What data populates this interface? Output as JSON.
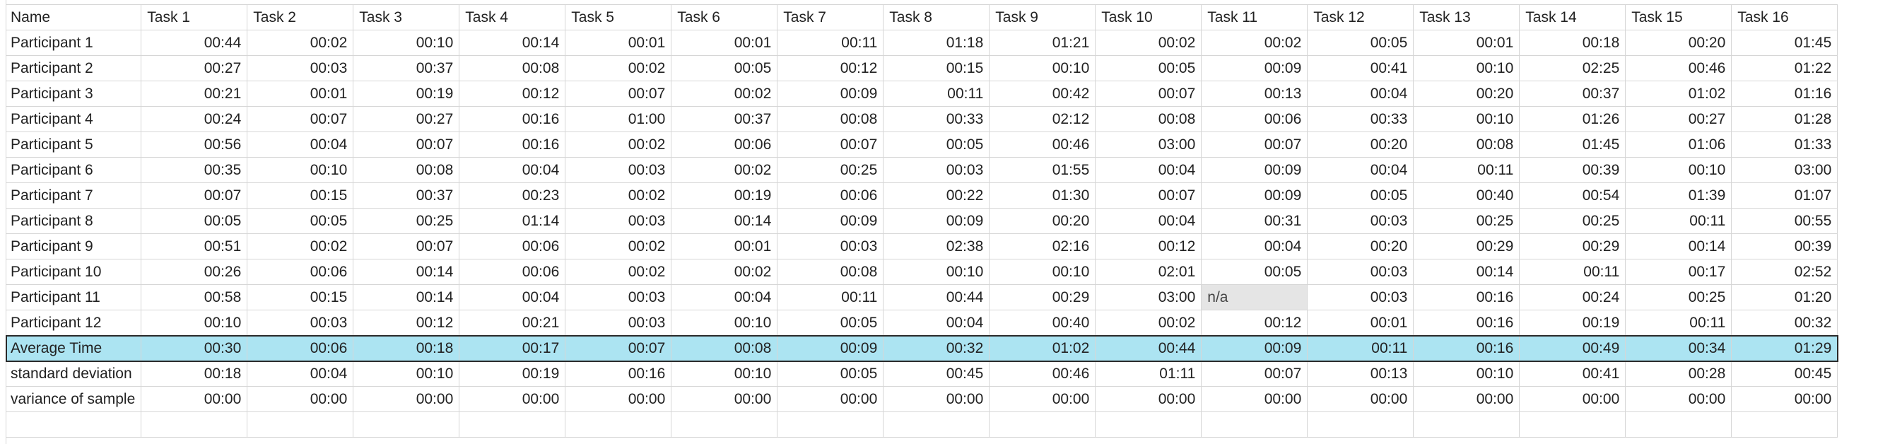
{
  "header": [
    "Name",
    "Task 1",
    "Task 2",
    "Task 3",
    "Task 4",
    "Task 5",
    "Task 6",
    "Task 7",
    "Task 8",
    "Task 9",
    "Task 10",
    "Task 11",
    "Task 12",
    "Task 13",
    "Task 14",
    "Task 15",
    "Task 16"
  ],
  "rows": [
    {
      "name": "Participant 1",
      "values": [
        "00:44",
        "00:02",
        "00:10",
        "00:14",
        "00:01",
        "00:01",
        "00:11",
        "01:18",
        "01:21",
        "00:02",
        "00:02",
        "00:05",
        "00:01",
        "00:18",
        "00:20",
        "01:45"
      ]
    },
    {
      "name": "Participant 2",
      "values": [
        "00:27",
        "00:03",
        "00:37",
        "00:08",
        "00:02",
        "00:05",
        "00:12",
        "00:15",
        "00:10",
        "00:05",
        "00:09",
        "00:41",
        "00:10",
        "02:25",
        "00:46",
        "01:22"
      ]
    },
    {
      "name": "Participant 3",
      "values": [
        "00:21",
        "00:01",
        "00:19",
        "00:12",
        "00:07",
        "00:02",
        "00:09",
        "00:11",
        "00:42",
        "00:07",
        "00:13",
        "00:04",
        "00:20",
        "00:37",
        "01:02",
        "01:16"
      ]
    },
    {
      "name": "Participant 4",
      "values": [
        "00:24",
        "00:07",
        "00:27",
        "00:16",
        "01:00",
        "00:37",
        "00:08",
        "00:33",
        "02:12",
        "00:08",
        "00:06",
        "00:33",
        "00:10",
        "01:26",
        "00:27",
        "01:28"
      ]
    },
    {
      "name": "Participant 5",
      "values": [
        "00:56",
        "00:04",
        "00:07",
        "00:16",
        "00:02",
        "00:06",
        "00:07",
        "00:05",
        "00:46",
        "03:00",
        "00:07",
        "00:20",
        "00:08",
        "01:45",
        "01:06",
        "01:33"
      ]
    },
    {
      "name": "Participant 6",
      "values": [
        "00:35",
        "00:10",
        "00:08",
        "00:04",
        "00:03",
        "00:02",
        "00:25",
        "00:03",
        "01:55",
        "00:04",
        "00:09",
        "00:04",
        "00:11",
        "00:39",
        "00:10",
        "03:00"
      ]
    },
    {
      "name": "Participant 7",
      "values": [
        "00:07",
        "00:15",
        "00:37",
        "00:23",
        "00:02",
        "00:19",
        "00:06",
        "00:22",
        "01:30",
        "00:07",
        "00:09",
        "00:05",
        "00:40",
        "00:54",
        "01:39",
        "01:07"
      ]
    },
    {
      "name": "Participant 8",
      "values": [
        "00:05",
        "00:05",
        "00:25",
        "01:14",
        "00:03",
        "00:14",
        "00:09",
        "00:09",
        "00:20",
        "00:04",
        "00:31",
        "00:03",
        "00:25",
        "00:25",
        "00:11",
        "00:55"
      ]
    },
    {
      "name": "Participant 9",
      "values": [
        "00:51",
        "00:02",
        "00:07",
        "00:06",
        "00:02",
        "00:01",
        "00:03",
        "02:38",
        "02:16",
        "00:12",
        "00:04",
        "00:20",
        "00:29",
        "00:29",
        "00:14",
        "00:39"
      ]
    },
    {
      "name": "Participant 10",
      "values": [
        "00:26",
        "00:06",
        "00:14",
        "00:06",
        "00:02",
        "00:02",
        "00:08",
        "00:10",
        "00:10",
        "02:01",
        "00:05",
        "00:03",
        "00:14",
        "00:11",
        "00:17",
        "02:52"
      ]
    },
    {
      "name": "Participant 11",
      "values": [
        "00:58",
        "00:15",
        "00:14",
        "00:04",
        "00:03",
        "00:04",
        "00:11",
        "00:44",
        "00:29",
        "03:00",
        "n/a",
        "00:03",
        "00:16",
        "00:24",
        "00:25",
        "01:20"
      ]
    },
    {
      "name": "Participant 12",
      "values": [
        "00:10",
        "00:03",
        "00:12",
        "00:21",
        "00:03",
        "00:10",
        "00:05",
        "00:04",
        "00:40",
        "00:02",
        "00:12",
        "00:01",
        "00:16",
        "00:19",
        "00:11",
        "00:32"
      ]
    }
  ],
  "average": {
    "name": "Average Time",
    "values": [
      "00:30",
      "00:06",
      "00:18",
      "00:17",
      "00:07",
      "00:08",
      "00:09",
      "00:32",
      "01:02",
      "00:44",
      "00:09",
      "00:11",
      "00:16",
      "00:49",
      "00:34",
      "01:29"
    ]
  },
  "stddev": {
    "name": "standard deviation",
    "values": [
      "00:18",
      "00:04",
      "00:10",
      "00:19",
      "00:16",
      "00:10",
      "00:05",
      "00:45",
      "00:46",
      "01:11",
      "00:07",
      "00:13",
      "00:10",
      "00:41",
      "00:28",
      "00:45"
    ]
  },
  "variance": {
    "name": "variance of sample",
    "values": [
      "00:00",
      "00:00",
      "00:00",
      "00:00",
      "00:00",
      "00:00",
      "00:00",
      "00:00",
      "00:00",
      "00:00",
      "00:00",
      "00:00",
      "00:00",
      "00:00",
      "00:00",
      "00:00"
    ]
  },
  "colors": {
    "highlight": "#ace4f2",
    "na_fill": "#e5e5e5",
    "grid": "#d6d6d6"
  }
}
